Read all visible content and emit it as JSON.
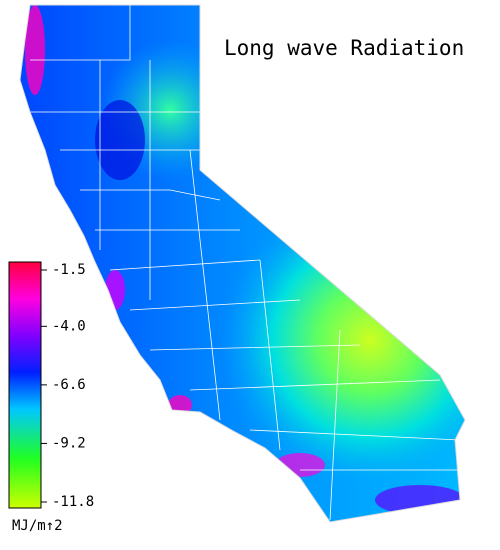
{
  "map": {
    "title": "Long wave Radiation",
    "colorbar": {
      "lim": [
        -1.5,
        -11.8
      ],
      "ticks": [
        -1.5,
        {
          "value": -4,
          "label": "-4.0"
        },
        -6.6,
        -9.2,
        -11.8
      ],
      "unit": "MJ/m↑2"
    }
  }
}
